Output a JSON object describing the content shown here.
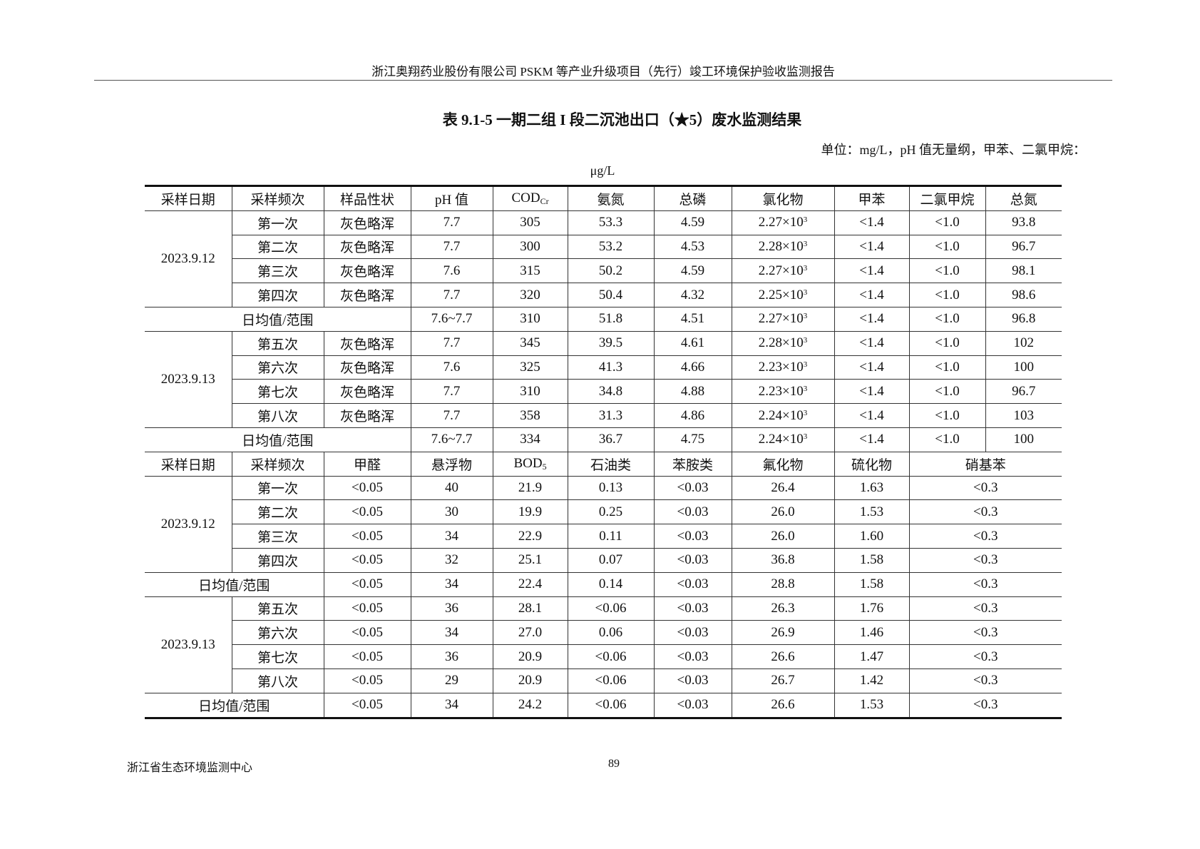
{
  "header": {
    "text": "浙江奥翔药业股份有限公司 PSKM 等产业升级项目（先行）竣工环境保护验收监测报告"
  },
  "title": "表 9.1-5  一期二组 I 段二沉池出口（★5）废水监测结果",
  "unit_line1": "单位：mg/L，pH 值无量纲，甲苯、二氯甲烷：",
  "unit_line2": "μg/L",
  "table1": {
    "headers": [
      "采样日期",
      "采样频次",
      "样品性状",
      "pH 值",
      "COD",
      "氨氮",
      "总磷",
      "氯化物",
      "甲苯",
      "二氯甲烷",
      "总氮"
    ],
    "cod_sub": "Cr",
    "groups": [
      {
        "date": "2023.9.12",
        "rows": [
          [
            "第一次",
            "灰色略浑",
            "7.7",
            "305",
            "53.3",
            "4.59",
            "2.27×10",
            "<1.4",
            "<1.0",
            "93.8"
          ],
          [
            "第二次",
            "灰色略浑",
            "7.7",
            "300",
            "53.2",
            "4.53",
            "2.28×10",
            "<1.4",
            "<1.0",
            "96.7"
          ],
          [
            "第三次",
            "灰色略浑",
            "7.6",
            "315",
            "50.2",
            "4.59",
            "2.27×10",
            "<1.4",
            "<1.0",
            "98.1"
          ],
          [
            "第四次",
            "灰色略浑",
            "7.7",
            "320",
            "50.4",
            "4.32",
            "2.25×10",
            "<1.4",
            "<1.0",
            "98.6"
          ]
        ],
        "summary": [
          "日均值/范围",
          "7.6~7.7",
          "310",
          "51.8",
          "4.51",
          "2.27×10",
          "<1.4",
          "<1.0",
          "96.8"
        ]
      },
      {
        "date": "2023.9.13",
        "rows": [
          [
            "第五次",
            "灰色略浑",
            "7.7",
            "345",
            "39.5",
            "4.61",
            "2.28×10",
            "<1.4",
            "<1.0",
            "102"
          ],
          [
            "第六次",
            "灰色略浑",
            "7.6",
            "325",
            "41.3",
            "4.66",
            "2.23×10",
            "<1.4",
            "<1.0",
            "100"
          ],
          [
            "第七次",
            "灰色略浑",
            "7.7",
            "310",
            "34.8",
            "4.88",
            "2.23×10",
            "<1.4",
            "<1.0",
            "96.7"
          ],
          [
            "第八次",
            "灰色略浑",
            "7.7",
            "358",
            "31.3",
            "4.86",
            "2.24×10",
            "<1.4",
            "<1.0",
            "103"
          ]
        ],
        "summary": [
          "日均值/范围",
          "7.6~7.7",
          "334",
          "36.7",
          "4.75",
          "2.24×10",
          "<1.4",
          "<1.0",
          "100"
        ]
      }
    ],
    "exponent": "3"
  },
  "table2": {
    "headers": [
      "采样日期",
      "采样频次",
      "甲醛",
      "悬浮物",
      "BOD",
      "石油类",
      "苯胺类",
      "氟化物",
      "硫化物",
      "硝基苯"
    ],
    "bod_sub": "5",
    "groups": [
      {
        "date": "2023.9.12",
        "rows": [
          [
            "第一次",
            "<0.05",
            "40",
            "21.9",
            "0.13",
            "<0.03",
            "26.4",
            "1.63",
            "<0.3"
          ],
          [
            "第二次",
            "<0.05",
            "30",
            "19.9",
            "0.25",
            "<0.03",
            "26.0",
            "1.53",
            "<0.3"
          ],
          [
            "第三次",
            "<0.05",
            "34",
            "22.9",
            "0.11",
            "<0.03",
            "26.0",
            "1.60",
            "<0.3"
          ],
          [
            "第四次",
            "<0.05",
            "32",
            "25.1",
            "0.07",
            "<0.03",
            "36.8",
            "1.58",
            "<0.3"
          ]
        ],
        "summary": [
          "日均值/范围",
          "<0.05",
          "34",
          "22.4",
          "0.14",
          "<0.03",
          "28.8",
          "1.58",
          "<0.3"
        ]
      },
      {
        "date": "2023.9.13",
        "rows": [
          [
            "第五次",
            "<0.05",
            "36",
            "28.1",
            "<0.06",
            "<0.03",
            "26.3",
            "1.76",
            "<0.3"
          ],
          [
            "第六次",
            "<0.05",
            "34",
            "27.0",
            "0.06",
            "<0.03",
            "26.9",
            "1.46",
            "<0.3"
          ],
          [
            "第七次",
            "<0.05",
            "36",
            "20.9",
            "<0.06",
            "<0.03",
            "26.6",
            "1.47",
            "<0.3"
          ],
          [
            "第八次",
            "<0.05",
            "29",
            "20.9",
            "<0.06",
            "<0.03",
            "26.7",
            "1.42",
            "<0.3"
          ]
        ],
        "summary": [
          "日均值/范围",
          "<0.05",
          "34",
          "24.2",
          "<0.06",
          "<0.03",
          "26.6",
          "1.53",
          "<0.3"
        ]
      }
    ]
  },
  "footer": {
    "org": "浙江省生态环境监测中心",
    "page": "89"
  }
}
